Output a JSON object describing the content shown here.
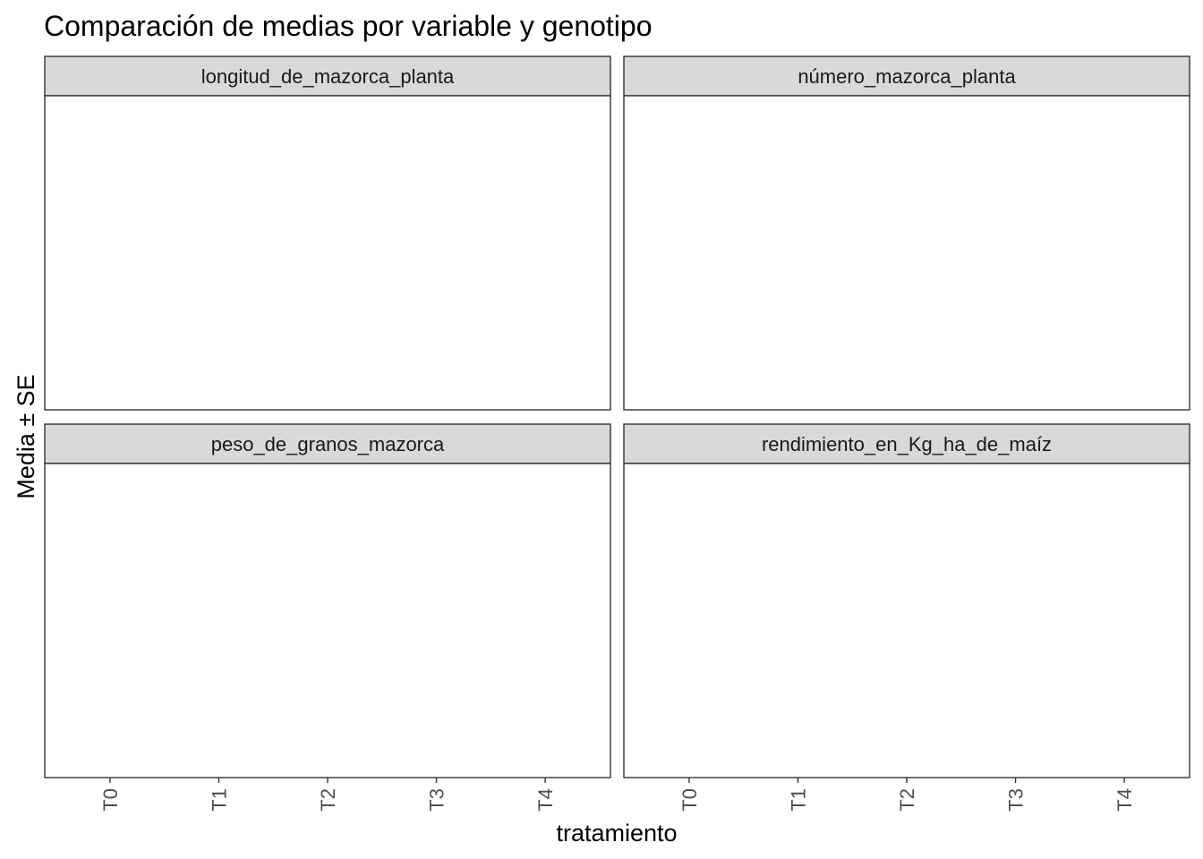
{
  "chart_data": {
    "type": "scatter",
    "title": "Comparación de medias por variable y genotipo",
    "xlabel": "tratamiento",
    "ylabel": "Media ± SE",
    "categories": [
      "T0",
      "T1",
      "T2",
      "T3",
      "T4"
    ],
    "facets": [
      {
        "label": "longitud_de_mazorca_planta",
        "points": []
      },
      {
        "label": "número_mazorca_planta",
        "points": []
      },
      {
        "label": "peso_de_granos_mazorca",
        "points": []
      },
      {
        "label": "rendimiento_en_Kg_ha_de_maíz",
        "points": []
      }
    ],
    "legend": "none",
    "grid": false,
    "colors": {
      "strip_background": "#d9d9d9",
      "panel_border": "#333333",
      "tick_color": "#333333",
      "tick_label": "#4d4d4d"
    }
  }
}
